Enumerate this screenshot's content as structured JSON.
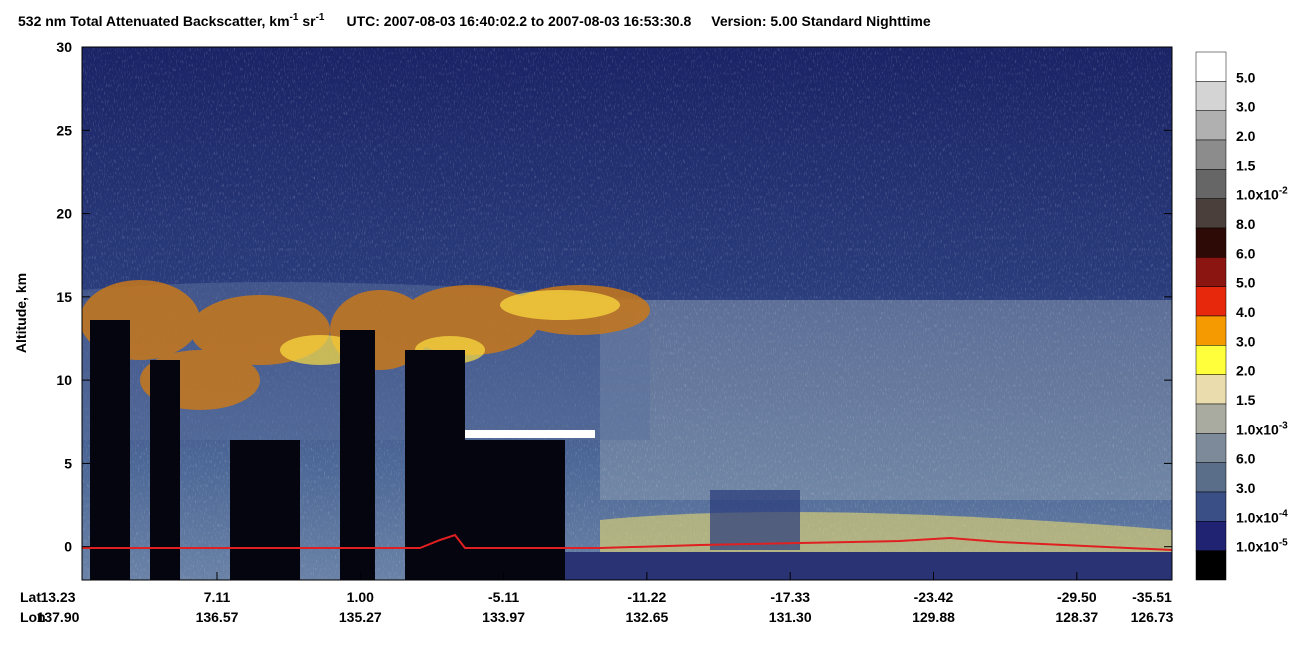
{
  "chart_data": {
    "type": "curtain",
    "title": "532 nm Total Attenuated Backscatter, km",
    "title_sup1": "-1",
    "title_mid": " sr",
    "title_sup2": "-1",
    "time_range": "UTC:  2007-08-03 16:40:02.2  to  2007-08-03 16:53:30.8",
    "version": "Version: 5.00  Standard  Nighttime",
    "ylabel": "Altitude, km",
    "ylim": [
      -2,
      30
    ],
    "yticks": [
      0,
      5,
      10,
      15,
      20,
      25,
      30
    ],
    "lat_label": "Lat",
    "lon_label": "Lon",
    "lat": [
      "13.23",
      "7.11",
      "1.00",
      "-5.11",
      "-11.22",
      "-17.33",
      "-23.42",
      "-29.50",
      "-35.51"
    ],
    "lon": [
      "137.90",
      "136.57",
      "135.27",
      "133.97",
      "132.65",
      "131.30",
      "129.88",
      "128.37",
      "126.73"
    ],
    "colorbar": {
      "colors": [
        "#ffffff",
        "#d4d4d4",
        "#b0b0b0",
        "#8c8c8c",
        "#666666",
        "#4a3f3a",
        "#2e0a06",
        "#8b1510",
        "#e8280c",
        "#f59a00",
        "#ffff3c",
        "#eadcac",
        "#a9aaa0",
        "#7d8a99",
        "#5a6e8a",
        "#3a4f86",
        "#1f2372",
        "#000000"
      ],
      "labels": [
        "5.0",
        "3.0",
        "2.0",
        "1.5",
        "1.0x10",
        "8.0",
        "6.0",
        "5.0",
        "4.0",
        "3.0",
        "2.0",
        "1.5",
        "1.0x10",
        "6.0",
        "3.0",
        "1.0x10",
        "1.0x10"
      ],
      "exponents": {
        "4": "-2",
        "12": "-3",
        "15": "-4",
        "16": "-5"
      }
    }
  }
}
